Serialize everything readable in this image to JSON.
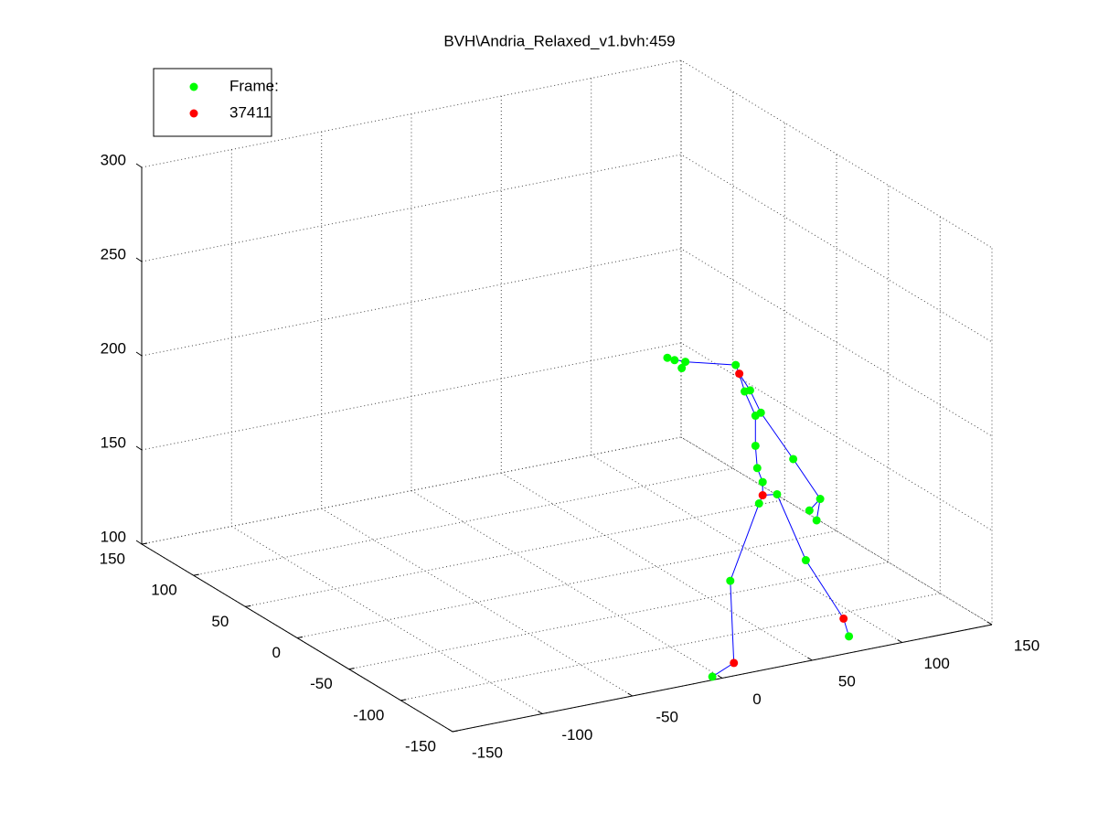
{
  "chart_data": {
    "type": "scatter3d",
    "title": "BVH\\Andria_Relaxed_v1.bvh:459",
    "xlim": [
      -150,
      150
    ],
    "ylim": [
      -150,
      150
    ],
    "zlim": [
      100,
      300
    ],
    "xticks": [
      -150,
      -100,
      -50,
      0,
      50,
      100,
      150
    ],
    "yticks": [
      -150,
      -100,
      -50,
      0,
      50,
      100,
      150
    ],
    "zticks": [
      100,
      150,
      200,
      250,
      300
    ],
    "grid": true,
    "legend": "northwest",
    "series": [
      {
        "name": "Frame:",
        "color": "#00ff00",
        "x": [
          -19,
          -15,
          -11,
          -9,
          19,
          24,
          27,
          30,
          33,
          30,
          31,
          34,
          42,
          32,
          51,
          66,
          60,
          64,
          58,
          82,
          16,
          6
        ],
        "y": [
          -130,
          -130,
          -130,
          -130,
          -130,
          -130,
          -130,
          -130,
          -130,
          -130,
          -130,
          -130,
          -130,
          -130,
          -130,
          -130,
          -130,
          -130,
          -130,
          -130,
          -130,
          -130
        ],
        "z": [
          267,
          265,
          260,
          263,
          256,
          241,
          241,
          227,
          228,
          211,
          199,
          191,
          183,
          180,
          200,
          176,
          171,
          165,
          145,
          100,
          142,
          93
        ]
      },
      {
        "name": "37411",
        "color": "#ff0000",
        "x": [
          21,
          34,
          79,
          18
        ],
        "y": [
          -130,
          -130,
          -130,
          -130
        ],
        "z": [
          251,
          184,
          110,
          98
        ]
      }
    ],
    "lines": [
      {
        "color": "#0000ff",
        "x": [
          -19,
          -9,
          19,
          21,
          24,
          30,
          30,
          31,
          34,
          34
        ],
        "y": [
          -130,
          -130,
          -130,
          -130,
          -130,
          -130,
          -130,
          -130,
          -130,
          -130
        ],
        "z": [
          267,
          263,
          256,
          251,
          241,
          227,
          211,
          199,
          191,
          184
        ]
      },
      {
        "color": "#0000ff",
        "x": [
          21,
          27,
          33,
          51,
          66,
          64
        ],
        "y": [
          -130,
          -130,
          -130,
          -130,
          -130,
          -130
        ],
        "z": [
          251,
          241,
          228,
          200,
          176,
          165
        ]
      },
      {
        "color": "#0000ff",
        "x": [
          66,
          60
        ],
        "y": [
          -130,
          -130
        ],
        "z": [
          176,
          171
        ]
      },
      {
        "color": "#0000ff",
        "x": [
          34,
          42,
          58,
          79,
          82
        ],
        "y": [
          -130,
          -130,
          -130,
          -130,
          -130
        ],
        "z": [
          184,
          183,
          145,
          110,
          100
        ]
      },
      {
        "color": "#0000ff",
        "x": [
          34,
          32,
          16,
          18,
          6
        ],
        "y": [
          -130,
          -130,
          -130,
          -130,
          -130
        ],
        "z": [
          184,
          180,
          142,
          98,
          93
        ]
      }
    ]
  }
}
